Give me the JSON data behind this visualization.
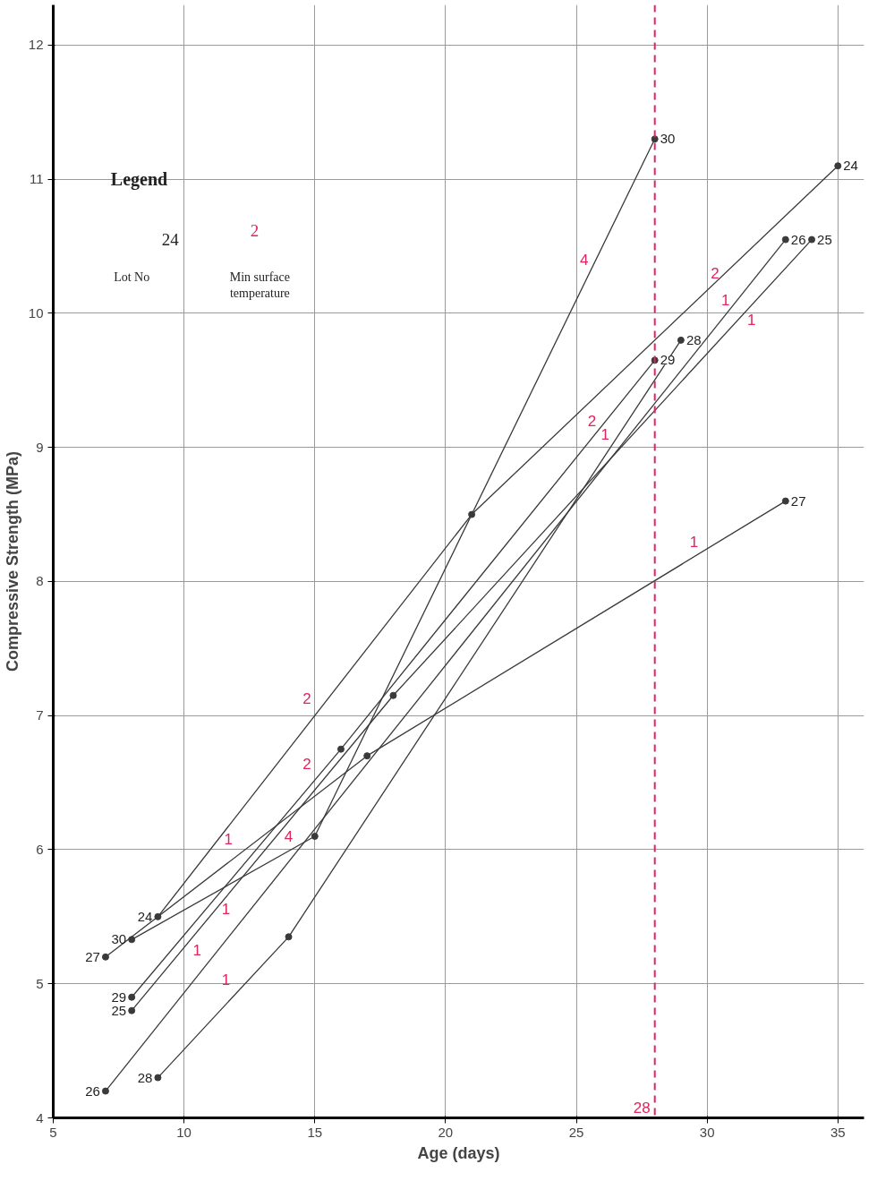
{
  "chart_data": {
    "type": "line",
    "xlabel": "Age (days)",
    "ylabel": "Compressive Strength (MPa)",
    "xlim": [
      5,
      36
    ],
    "ylim": [
      4,
      12.3
    ],
    "xticks": [
      5,
      10,
      15,
      20,
      25,
      30,
      35
    ],
    "yticks": [
      4,
      5,
      6,
      7,
      8,
      9,
      10,
      11,
      12
    ],
    "grid": true,
    "marker": "circle",
    "line_style": "solid",
    "series": [
      {
        "name": "24",
        "color": "#3a3a3a",
        "x": [
          9,
          21,
          35
        ],
        "values": [
          5.5,
          8.5,
          11.1
        ]
      },
      {
        "name": "25",
        "color": "#3a3a3a",
        "x": [
          8,
          18,
          34
        ],
        "values": [
          4.8,
          7.15,
          10.55
        ]
      },
      {
        "name": "26",
        "color": "#3a3a3a",
        "x": [
          7,
          33
        ],
        "values": [
          4.2,
          10.55
        ]
      },
      {
        "name": "27",
        "color": "#3a3a3a",
        "x": [
          7,
          17,
          33
        ],
        "values": [
          5.2,
          6.7,
          8.6
        ]
      },
      {
        "name": "28",
        "color": "#3a3a3a",
        "x": [
          9,
          14,
          29
        ],
        "values": [
          4.3,
          5.35,
          9.8
        ]
      },
      {
        "name": "29",
        "color": "#3a3a3a",
        "x": [
          8,
          16,
          28
        ],
        "values": [
          4.9,
          6.75,
          9.65
        ]
      },
      {
        "name": "30",
        "color": "#3a3a3a",
        "x": [
          8,
          15,
          28
        ],
        "values": [
          5.33,
          6.1,
          11.3
        ]
      }
    ],
    "ref_lines": [
      {
        "axis": "x",
        "value": 28,
        "label": "28",
        "color": "#e0245e",
        "line_style": "dashed"
      }
    ],
    "annotations": [
      "Legend",
      "24",
      "2",
      "Lot No",
      "Min surface temperature",
      "4",
      "2",
      "1",
      "1",
      "2",
      "1",
      "1",
      "2",
      "2",
      "1",
      "4",
      "1",
      "1",
      "1"
    ]
  }
}
